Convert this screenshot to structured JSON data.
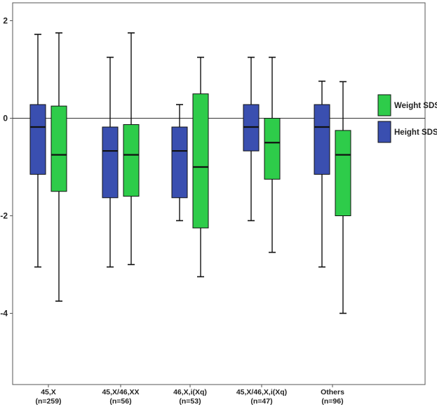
{
  "chart_data": {
    "type": "boxplot",
    "title": "",
    "xlabel": "",
    "ylabel": "",
    "ylim": [
      -5.5,
      2.2
    ],
    "yticks": [
      2,
      0,
      -2,
      -4
    ],
    "reference_line": 0,
    "grid": false,
    "legend_position": "right",
    "categories": [
      {
        "name": "45,X",
        "n": "(n=259)"
      },
      {
        "name": "45,X/46,XX",
        "n": "(n=56)"
      },
      {
        "name": "46,X,i(Xq)",
        "n": "(n=53)"
      },
      {
        "name": "45,X/46,X,i(Xq)",
        "n": "(n=47)"
      },
      {
        "name": "Others",
        "n": "(n=96)"
      }
    ],
    "series": [
      {
        "name": "Height SDS",
        "color": "#3a4fb0",
        "boxes": [
          {
            "min": -3.05,
            "q1": -1.15,
            "median": -0.18,
            "q3": 0.28,
            "max": 1.72
          },
          {
            "min": -3.05,
            "q1": -1.63,
            "median": -0.67,
            "q3": -0.18,
            "max": 1.25
          },
          {
            "min": -2.1,
            "q1": -1.63,
            "median": -0.67,
            "q3": -0.18,
            "max": 0.28
          },
          {
            "min": -2.1,
            "q1": -0.67,
            "median": -0.18,
            "q3": 0.28,
            "max": 1.25
          },
          {
            "min": -3.05,
            "q1": -1.15,
            "median": -0.18,
            "q3": 0.28,
            "max": 0.76
          }
        ]
      },
      {
        "name": "Weight SDS",
        "color": "#2ecc4a",
        "boxes": [
          {
            "min": -3.75,
            "q1": -1.5,
            "median": -0.75,
            "q3": 0.25,
            "max": 1.75
          },
          {
            "min": -3.0,
            "q1": -1.6,
            "median": -0.75,
            "q3": -0.13,
            "max": 1.75
          },
          {
            "min": -3.25,
            "q1": -2.25,
            "median": -1.0,
            "q3": 0.5,
            "max": 1.25
          },
          {
            "min": -2.75,
            "q1": -1.25,
            "median": -0.5,
            "q3": 0.0,
            "max": 1.25
          },
          {
            "min": -4.0,
            "q1": -2.0,
            "median": -0.75,
            "q3": -0.25,
            "max": 0.75
          }
        ]
      }
    ],
    "legend": [
      {
        "label": "Weight SDS",
        "color": "#2ecc4a"
      },
      {
        "label": "Height SDS",
        "color": "#3a4fb0"
      }
    ]
  }
}
